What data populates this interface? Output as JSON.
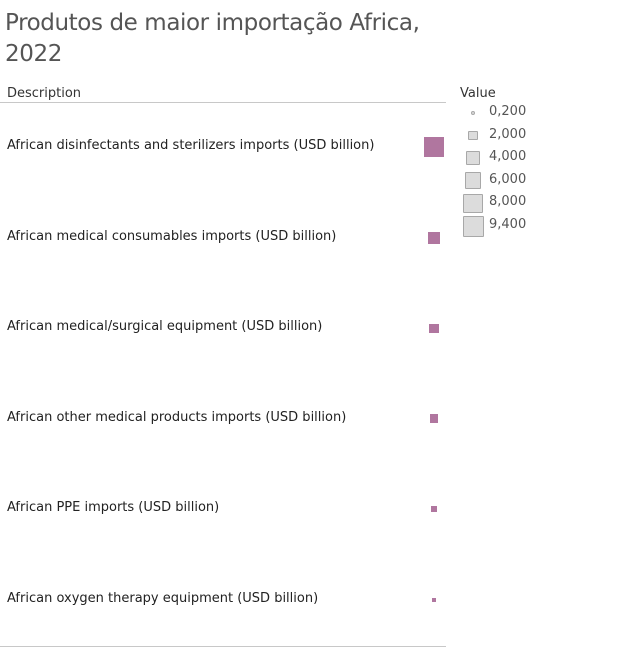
{
  "chart_data": {
    "type": "table",
    "title": "Produtos de maior importação Africa, 2022",
    "column_header": "Description",
    "mark_color": "#b0769f",
    "size_legend": {
      "title": "Value",
      "items": [
        "0,200",
        "2,000",
        "4,000",
        "6,000",
        "8,000",
        "9,400"
      ]
    },
    "rows": [
      {
        "label": "African disinfectants and sterilizers imports (USD billion)",
        "value": 9.4
      },
      {
        "label": "African medical consumables imports (USD billion)",
        "value": 3.6
      },
      {
        "label": "African medical/surgical equipment (USD billion)",
        "value": 2.1
      },
      {
        "label": "African other medical products imports (USD billion)",
        "value": 1.7
      },
      {
        "label": "African PPE imports (USD billion)",
        "value": 0.9
      },
      {
        "label": "African oxygen therapy equipment (USD billion)",
        "value": 0.4
      }
    ]
  }
}
